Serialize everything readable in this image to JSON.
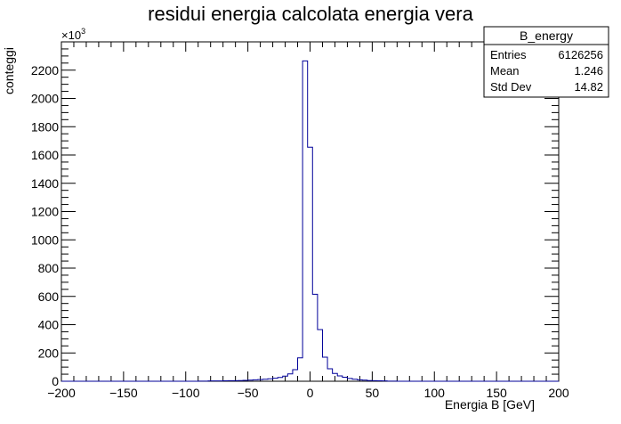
{
  "chart_data": {
    "type": "histogram",
    "title": "residui energia calcolata energia vera",
    "xlabel": "Energia B [GeV]",
    "ylabel": "conteggi",
    "y_multiplier": "×10",
    "y_multiplier_exp": "3",
    "xlim": [
      -200,
      200
    ],
    "ylim": [
      0,
      2400
    ],
    "x_ticks": [
      -200,
      -150,
      -100,
      -50,
      0,
      50,
      100,
      150,
      200
    ],
    "x_tick_labels": [
      "−200",
      "−150",
      "−100",
      "−50",
      "0",
      "50",
      "100",
      "150",
      "200"
    ],
    "y_ticks": [
      0,
      200,
      400,
      600,
      800,
      1000,
      1200,
      1400,
      1600,
      1800,
      2000,
      2200
    ],
    "y_tick_labels": [
      "0",
      "200",
      "400",
      "600",
      "800",
      "1000",
      "1200",
      "1400",
      "1600",
      "1800",
      "2000",
      "2200"
    ],
    "bin_width": 4,
    "bins_x_low": [
      -90,
      -86,
      -82,
      -78,
      -74,
      -70,
      -66,
      -62,
      -58,
      -54,
      -50,
      -46,
      -42,
      -38,
      -34,
      -30,
      -26,
      -22,
      -18,
      -14,
      -10,
      -6,
      -2,
      2,
      6,
      10,
      14,
      18,
      22,
      26,
      30,
      34,
      38,
      42,
      46,
      50,
      54,
      58,
      62,
      66
    ],
    "bins_count": [
      1,
      1,
      2,
      2,
      2,
      3,
      4,
      4,
      5,
      6,
      8,
      10,
      12,
      14,
      17,
      21,
      27,
      36,
      52,
      82,
      165,
      2265,
      1655,
      615,
      365,
      170,
      88,
      55,
      38,
      28,
      20,
      14,
      10,
      8,
      5,
      4,
      3,
      2,
      1,
      1
    ],
    "line_color": "#000099",
    "stats_box": {
      "title": "B_energy",
      "rows": [
        {
          "label": "Entries",
          "value": "6126256"
        },
        {
          "label": "Mean",
          "value": "1.246"
        },
        {
          "label": "Std Dev",
          "value": "14.82"
        }
      ],
      "placement": "top-right"
    }
  }
}
